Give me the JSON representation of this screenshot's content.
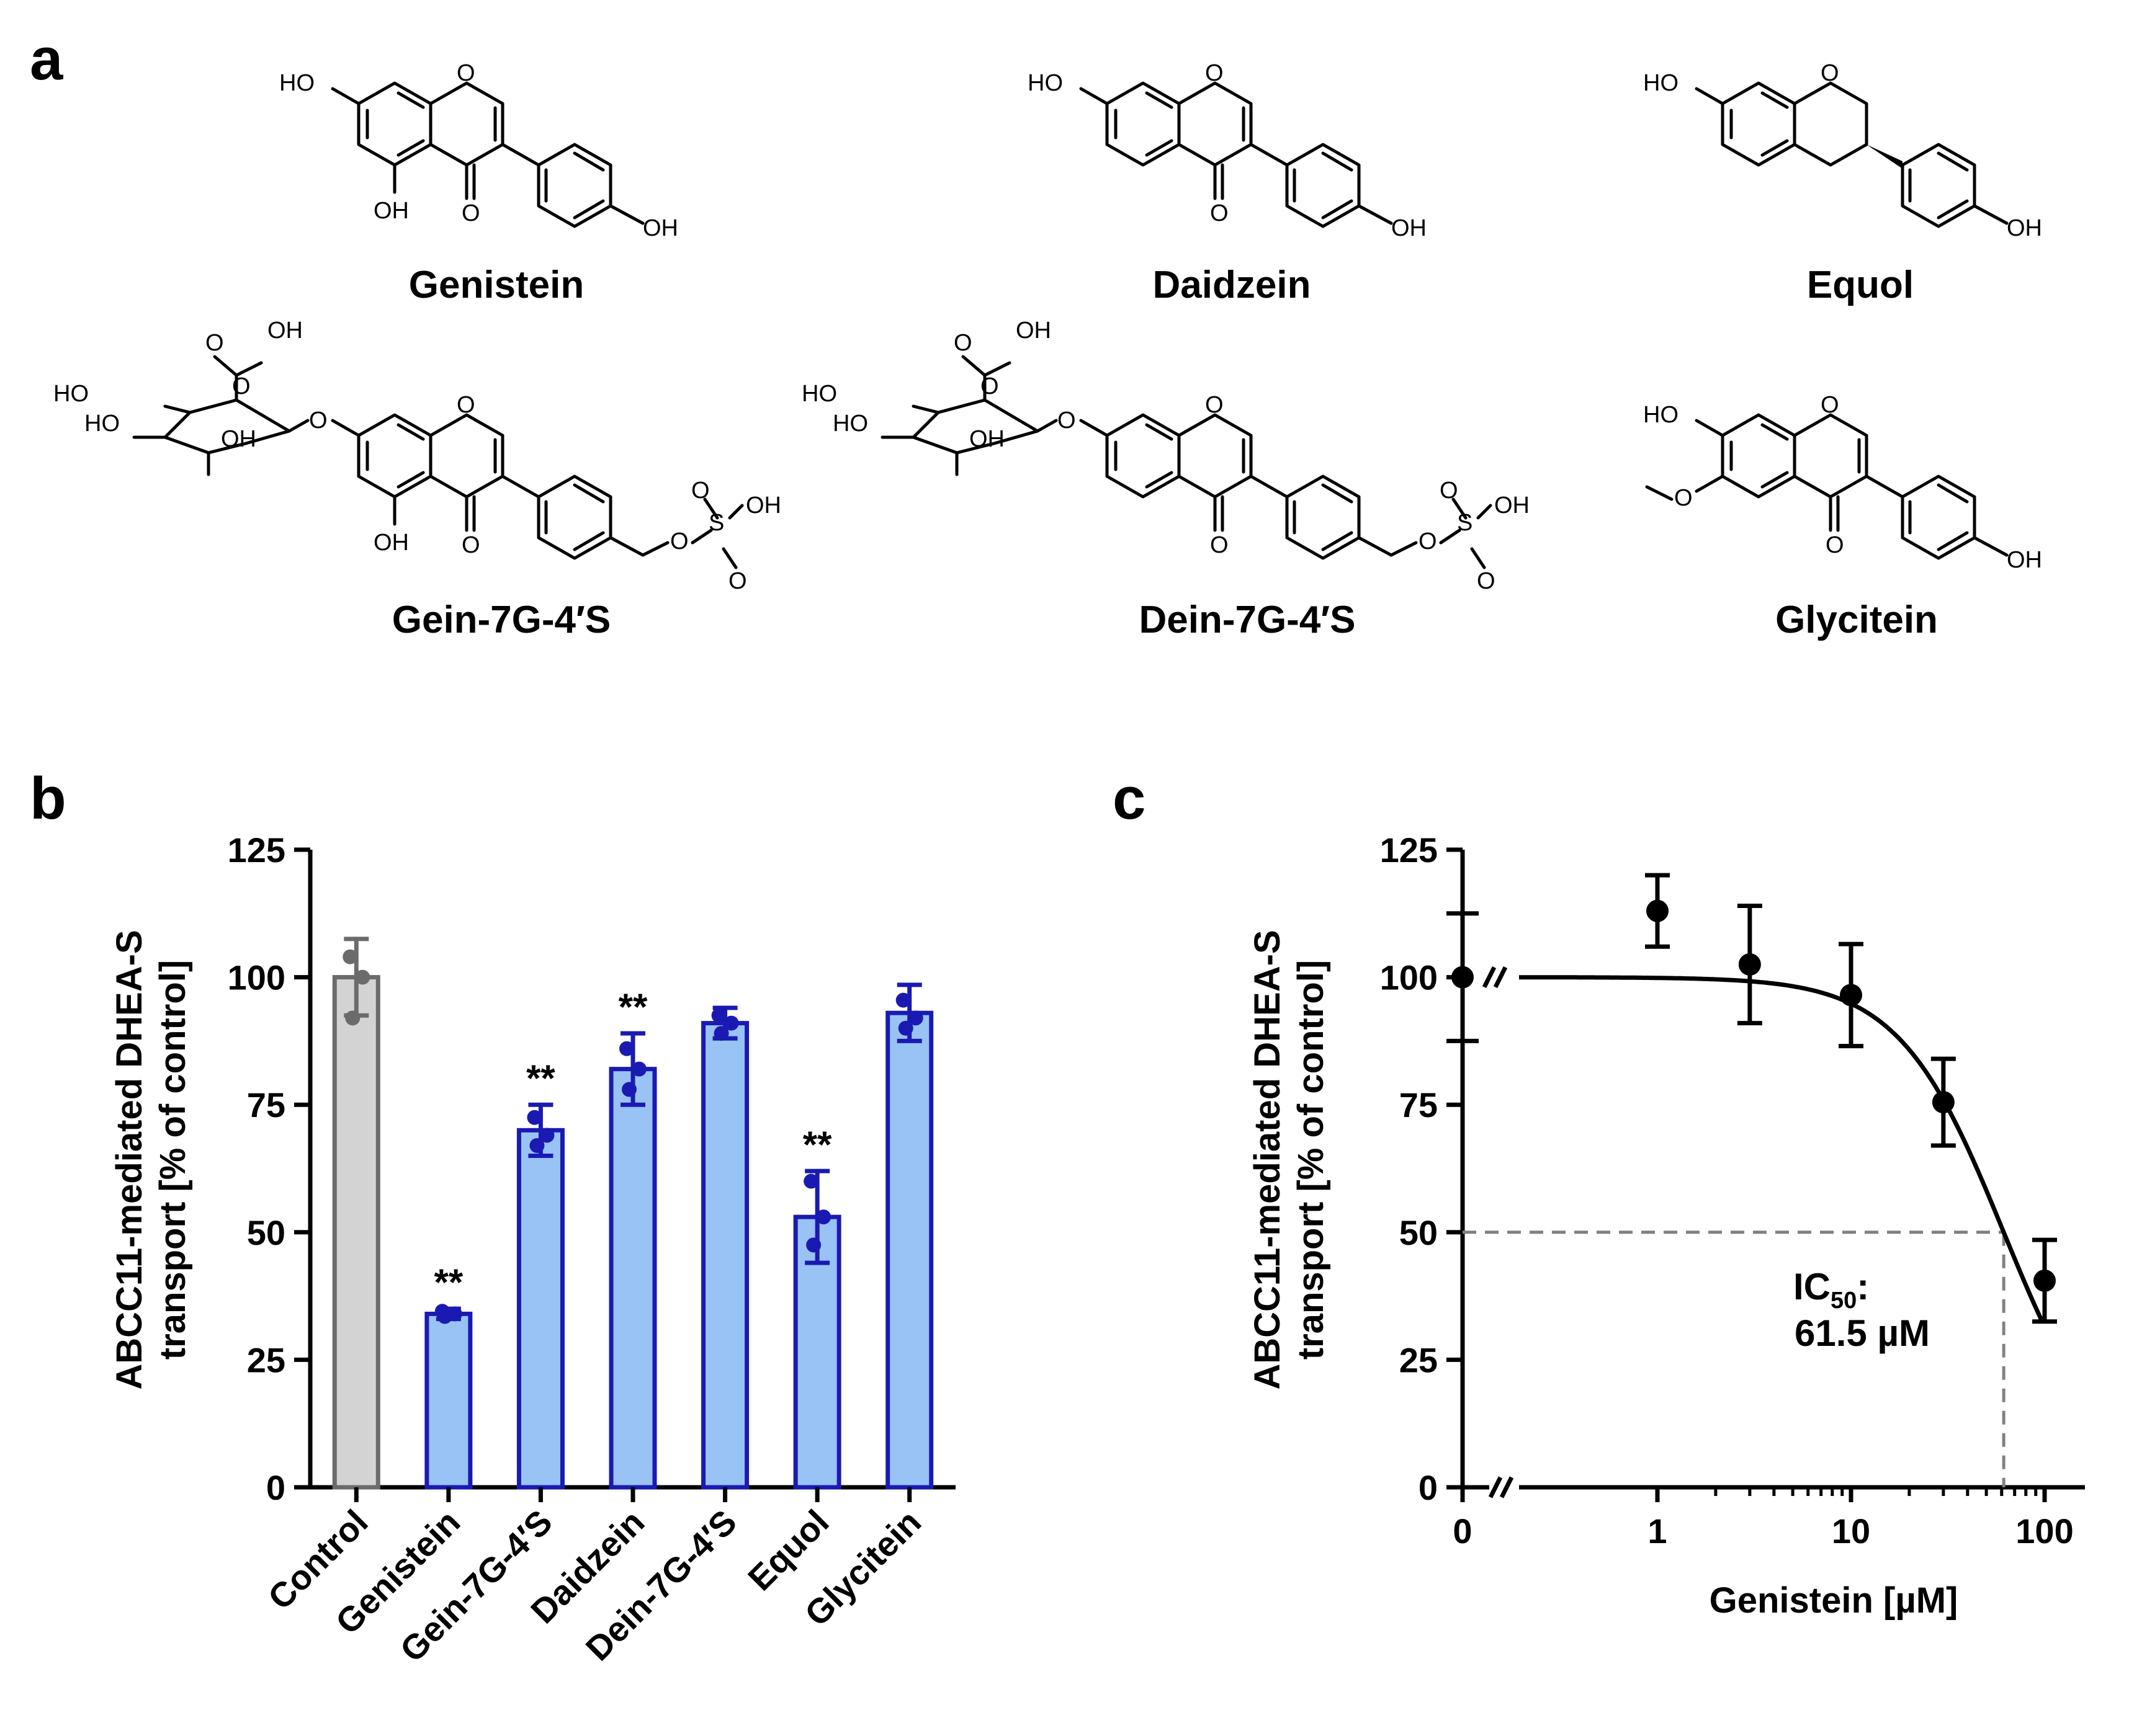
{
  "panels": {
    "a": "a",
    "b": "b",
    "c": "c"
  },
  "compounds": {
    "genistein": {
      "name": "Genistein",
      "atoms": {
        "ho7": "HO",
        "ring_o": "O",
        "oh5": "OH",
        "keto": "O",
        "oh4p": "OH"
      }
    },
    "daidzein": {
      "name": "Daidzein",
      "atoms": {
        "ho7": "HO",
        "ring_o": "O",
        "keto": "O",
        "oh4p": "OH"
      }
    },
    "equol": {
      "name": "Equol",
      "atoms": {
        "ho7": "HO",
        "ring_o": "O",
        "oh4p": "OH"
      }
    },
    "gein": {
      "name": "Gein-7G-4′S",
      "atoms": {
        "cooh_o": "O",
        "cooh_oh": "OH",
        "ho_a": "HO",
        "ho_b": "HO",
        "oh_c": "OH",
        "sugar_o": "O",
        "link_o": "O",
        "ring_o": "O",
        "oh5": "OH",
        "keto": "O",
        "s_o1": "O",
        "s": "S",
        "s_oh": "OH",
        "s_o2": "O",
        "s_link": "O"
      }
    },
    "dein": {
      "name": "Dein-7G-4′S",
      "atoms": {
        "cooh_o": "O",
        "cooh_oh": "OH",
        "ho_a": "HO",
        "ho_b": "HO",
        "oh_c": "OH",
        "sugar_o": "O",
        "link_o": "O",
        "ring_o": "O",
        "keto": "O",
        "s_o1": "O",
        "s": "S",
        "s_oh": "OH",
        "s_o2": "O",
        "s_link": "O"
      }
    },
    "glycitein": {
      "name": "Glycitein",
      "atoms": {
        "ho7": "HO",
        "ome": "O",
        "ring_o": "O",
        "keto": "O",
        "oh4p": "OH"
      }
    }
  },
  "y_axis_label": {
    "line1": "ABCC11-mediated DHEA-S",
    "line2": "transport [% of control]"
  },
  "colors": {
    "control_fill": "#d3d3d3",
    "control_edge": "#6b6b6b",
    "treat_fill": "#99c2f5",
    "treat_edge": "#1a1ab3",
    "curve": "#000000",
    "dash": "#808080"
  },
  "chart_data": [
    {
      "type": "bar",
      "categories": [
        "Control",
        "Genistein",
        "Gein-7G-4′S",
        "Daidzein",
        "Dein-7G-4′S",
        "Equol",
        "Glycitein"
      ],
      "values": [
        100,
        34,
        70,
        82,
        91,
        53,
        93
      ],
      "errors": [
        7.5,
        1,
        5,
        7,
        3,
        9,
        5.5
      ],
      "points": [
        [
          104,
          100,
          92
        ],
        [
          34.5,
          34,
          33.5
        ],
        [
          72.5,
          69,
          67
        ],
        [
          86,
          82,
          78
        ],
        [
          92.5,
          91,
          89
        ],
        [
          60,
          53,
          47.5
        ],
        [
          95.5,
          92,
          90
        ]
      ],
      "significance": [
        "",
        "**",
        "**",
        "**",
        "",
        "**",
        ""
      ],
      "yticks": [
        "0",
        "25",
        "50",
        "75",
        "100",
        "125"
      ],
      "ylim": [
        0,
        125
      ],
      "ylabel": "ABCC11-mediated DHEA-S transport [% of control]"
    },
    {
      "type": "scatter",
      "x": [
        0,
        1,
        3,
        10,
        30,
        100
      ],
      "x_scale": "log",
      "y": [
        100,
        113,
        102.5,
        96.5,
        75.5,
        40.5
      ],
      "errors": [
        0,
        7,
        11.5,
        10,
        8.5,
        8
      ],
      "fit": "sigmoidal dose-response",
      "ic50": 61.5,
      "ic50_label": {
        "prefix": "IC",
        "sub": "50",
        "suffix": ":",
        "value": "61.5 µM"
      },
      "xticks": [
        "0",
        "1",
        "10",
        "100"
      ],
      "yticks": [
        "0",
        "25",
        "50",
        "75",
        "100",
        "125"
      ],
      "ylim": [
        0,
        125
      ],
      "xlabel": "Genistein [µM]",
      "ylabel": "ABCC11-mediated DHEA-S transport [% of control]"
    }
  ]
}
